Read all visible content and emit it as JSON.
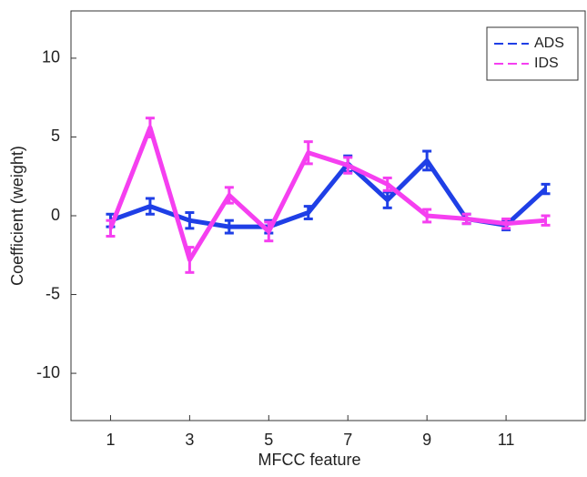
{
  "chart_data": {
    "type": "line",
    "x_label": "MFCC feature",
    "y_label": "Coefficient (weight)",
    "x": [
      1,
      2,
      3,
      4,
      5,
      6,
      7,
      8,
      9,
      10,
      11,
      12
    ],
    "series": [
      {
        "name": "ADS",
        "color": "#1f3fe6",
        "values": [
          -0.3,
          0.6,
          -0.3,
          -0.7,
          -0.7,
          0.2,
          3.3,
          1.0,
          3.5,
          -0.2,
          -0.6,
          1.7
        ],
        "errors": [
          0.4,
          0.5,
          0.5,
          0.4,
          0.4,
          0.4,
          0.5,
          0.5,
          0.6,
          0.3,
          0.3,
          0.3
        ]
      },
      {
        "name": "IDS",
        "color": "#f53ff0",
        "values": [
          -0.8,
          5.6,
          -2.8,
          1.3,
          -1.0,
          4.0,
          3.2,
          2.0,
          0.0,
          -0.2,
          -0.5,
          -0.3
        ],
        "errors": [
          0.5,
          0.6,
          0.8,
          0.5,
          0.6,
          0.7,
          0.5,
          0.4,
          0.4,
          0.3,
          0.3,
          0.3
        ]
      }
    ],
    "xlim": [
      0,
      13
    ],
    "ylim": [
      -13,
      13
    ],
    "xticks": [
      1,
      3,
      5,
      7,
      9,
      11
    ],
    "yticks": [
      -10,
      -5,
      0,
      5,
      10
    ],
    "legend": "upper right"
  }
}
